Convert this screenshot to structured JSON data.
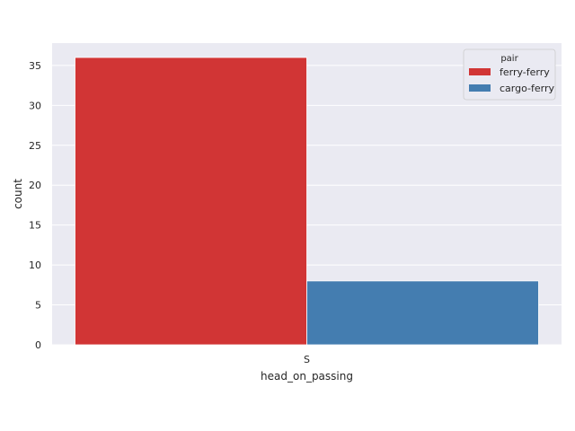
{
  "chart_data": {
    "type": "bar",
    "title": "",
    "xlabel": "head_on_passing",
    "ylabel": "count",
    "categories": [
      "S"
    ],
    "ylim": [
      0,
      37.8
    ],
    "yticks": [
      0,
      5,
      10,
      15,
      20,
      25,
      30,
      35
    ],
    "grid": true,
    "legend": {
      "title": "pair",
      "placement": "top-right"
    },
    "series": [
      {
        "name": "ferry-ferry",
        "values": [
          36
        ],
        "color": "#d13535"
      },
      {
        "name": "cargo-ferry",
        "values": [
          8
        ],
        "color": "#447db0"
      }
    ],
    "background_color": "#eaeaf2"
  }
}
